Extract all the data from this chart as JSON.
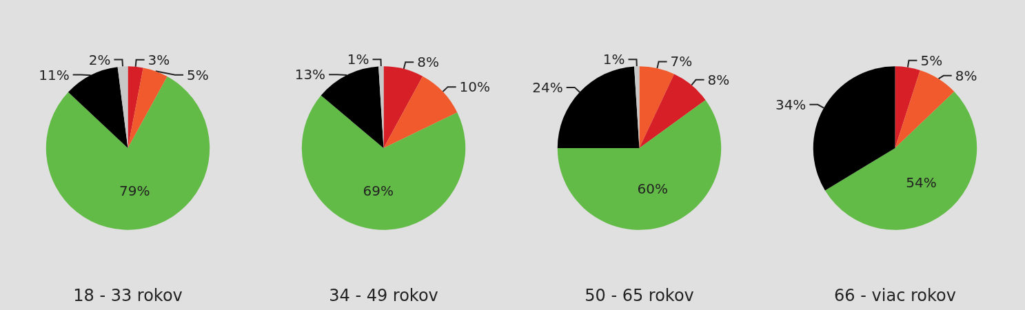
{
  "chart_data": [
    {
      "type": "pie",
      "title": "18 - 33 rokov",
      "categories": [
        null,
        null,
        null,
        null,
        null
      ],
      "values": [
        3,
        5,
        79,
        11,
        2
      ],
      "value_labels": [
        "3%",
        "5%",
        "79%",
        "11%",
        "2%"
      ],
      "colors": [
        "#d71f27",
        "#f15a2c",
        "#63bb47",
        "#000000",
        "#c8c8c8"
      ]
    },
    {
      "type": "pie",
      "title": "34 - 49 rokov",
      "categories": [
        null,
        null,
        null,
        null,
        null
      ],
      "values": [
        8,
        10,
        69,
        13,
        1
      ],
      "value_labels": [
        "8%",
        "10%",
        "69%",
        "13%",
        "1%"
      ],
      "colors": [
        "#d71f27",
        "#f15a2c",
        "#63bb47",
        "#000000",
        "#c8c8c8"
      ]
    },
    {
      "type": "pie",
      "title": "50 - 65 rokov",
      "categories": [
        null,
        null,
        null,
        null,
        null
      ],
      "values": [
        7,
        8,
        60,
        24,
        1
      ],
      "value_labels": [
        "7%",
        "8%",
        "60%",
        "24%",
        "1%"
      ],
      "colors": [
        "#f15a2c",
        "#d71f27",
        "#63bb47",
        "#000000",
        "#c8c8c8"
      ]
    },
    {
      "type": "pie",
      "title": "66 - viac rokov",
      "categories": [
        null,
        null,
        null,
        null
      ],
      "values": [
        5,
        8,
        54,
        34
      ],
      "value_labels": [
        "5%",
        "8%",
        "54%",
        "34%"
      ],
      "colors": [
        "#d71f27",
        "#f15a2c",
        "#63bb47",
        "#000000"
      ]
    }
  ]
}
